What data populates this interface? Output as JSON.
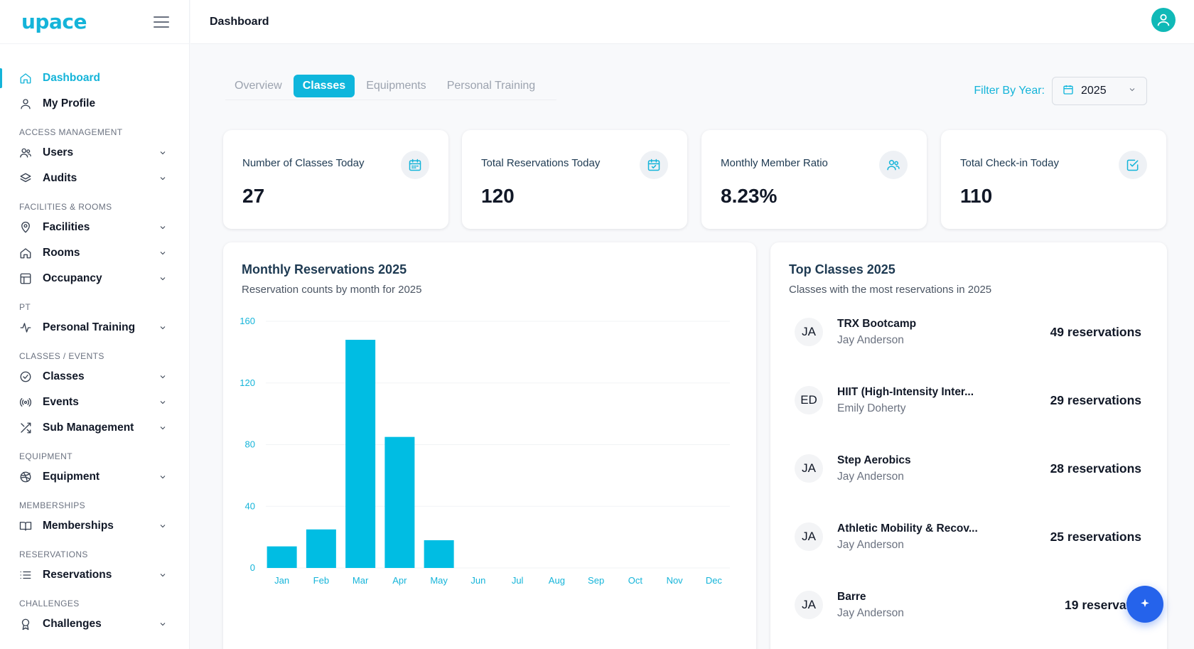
{
  "app": {
    "logo": "upace"
  },
  "header": {
    "title": "Dashboard"
  },
  "sidebar": {
    "top_items": [
      {
        "label": "Dashboard",
        "icon": "home-icon",
        "active": true
      },
      {
        "label": "My Profile",
        "icon": "user-icon"
      }
    ],
    "sections": [
      {
        "title": "ACCESS MANAGEMENT",
        "items": [
          {
            "label": "Users",
            "icon": "users-icon"
          },
          {
            "label": "Audits",
            "icon": "layers-icon"
          }
        ]
      },
      {
        "title": "FACILITIES & ROOMS",
        "items": [
          {
            "label": "Facilities",
            "icon": "map-pin-icon"
          },
          {
            "label": "Rooms",
            "icon": "home-icon"
          },
          {
            "label": "Occupancy",
            "icon": "table-icon"
          }
        ]
      },
      {
        "title": "PT",
        "items": [
          {
            "label": "Personal Training",
            "icon": "activity-icon"
          }
        ]
      },
      {
        "title": "CLASSES / EVENTS",
        "items": [
          {
            "label": "Classes",
            "icon": "check-circle-icon"
          },
          {
            "label": "Events",
            "icon": "broadcast-icon"
          },
          {
            "label": "Sub Management",
            "icon": "shuffle-icon"
          }
        ]
      },
      {
        "title": "EQUIPMENT",
        "items": [
          {
            "label": "Equipment",
            "icon": "dribbble-icon"
          }
        ]
      },
      {
        "title": "MEMBERSHIPS",
        "items": [
          {
            "label": "Memberships",
            "icon": "book-open-icon"
          }
        ]
      },
      {
        "title": "RESERVATIONS",
        "items": [
          {
            "label": "Reservations",
            "icon": "list-icon"
          }
        ]
      },
      {
        "title": "CHALLENGES",
        "items": [
          {
            "label": "Challenges",
            "icon": "award-icon"
          }
        ]
      }
    ]
  },
  "tabs": [
    "Overview",
    "Classes",
    "Equipments",
    "Personal Training"
  ],
  "active_tab": "Classes",
  "filter": {
    "label": "Filter By Year:",
    "year": "2025"
  },
  "stats": [
    {
      "title": "Number of Classes Today",
      "value": "27",
      "icon": "calendar-icon"
    },
    {
      "title": "Total Reservations Today",
      "value": "120",
      "icon": "calendar-check-icon"
    },
    {
      "title": "Monthly Member Ratio",
      "value": "8.23%",
      "icon": "users-icon"
    },
    {
      "title": "Total Check-in Today",
      "value": "110",
      "icon": "check-square-icon"
    }
  ],
  "monthly_panel": {
    "title": "Monthly Reservations 2025",
    "subtitle": "Reservation counts by month for 2025"
  },
  "chart_data": {
    "type": "bar",
    "categories": [
      "Jan",
      "Feb",
      "Mar",
      "Apr",
      "May",
      "Jun",
      "Jul",
      "Aug",
      "Sep",
      "Oct",
      "Nov",
      "Dec"
    ],
    "values": [
      14,
      25,
      148,
      85,
      18,
      0,
      0,
      0,
      0,
      0,
      0,
      0
    ],
    "ylim": [
      0,
      160
    ],
    "yticks": [
      0,
      40,
      80,
      120,
      160
    ],
    "bar_color": "#00bde3",
    "grid": true
  },
  "top_panel": {
    "title": "Top Classes 2025",
    "subtitle": "Classes with the most reservations in 2025",
    "classes": [
      {
        "initials": "JA",
        "name": "TRX Bootcamp",
        "instructor": "Jay Anderson",
        "count": "49 reservations"
      },
      {
        "initials": "ED",
        "name": "HIIT (High-Intensity Inter...",
        "instructor": "Emily Doherty",
        "count": "29 reservations"
      },
      {
        "initials": "JA",
        "name": "Step Aerobics",
        "instructor": "Jay Anderson",
        "count": "28 reservations"
      },
      {
        "initials": "JA",
        "name": "Athletic Mobility & Recov...",
        "instructor": "Jay Anderson",
        "count": "25 reservations"
      },
      {
        "initials": "JA",
        "name": "Barre",
        "instructor": "Jay Anderson",
        "count": "19 reservatio"
      }
    ]
  },
  "colors": {
    "accent": "#14b4d9",
    "fab": "#2563eb"
  }
}
